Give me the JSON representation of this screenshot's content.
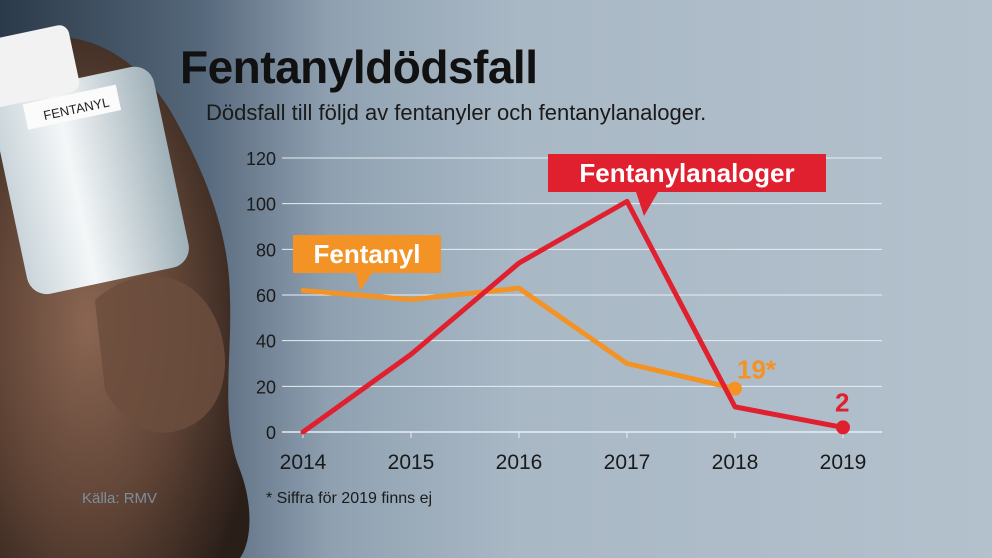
{
  "title": "Fentanyldödsfall",
  "subtitle": "Dödsfall till följd av fentanyler och fentanylanaloger.",
  "source": "Källa: RMV",
  "footnote": "* Siffra för 2019 finns ej",
  "vial_label": "FENTANYL",
  "colors": {
    "fentanyl": "#f39325",
    "analoger": "#e0202e",
    "grid": "#e8eef3",
    "text": "#1a1a1a"
  },
  "chart_data": {
    "type": "line",
    "title": "Fentanyldödsfall",
    "x": [
      "2014",
      "2015",
      "2016",
      "2017",
      "2018",
      "2019"
    ],
    "ylim": [
      0,
      120
    ],
    "yticks": [
      0,
      20,
      40,
      60,
      80,
      100,
      120
    ],
    "grid": true,
    "series": [
      {
        "name": "Fentanyl",
        "key": "fentanyl",
        "values": [
          62,
          58,
          63,
          30,
          19,
          null
        ],
        "end_label": "19*"
      },
      {
        "name": "Fentanylanaloger",
        "key": "analoger",
        "values": [
          0,
          34,
          74,
          101,
          11,
          2
        ],
        "end_label": "2"
      }
    ]
  }
}
